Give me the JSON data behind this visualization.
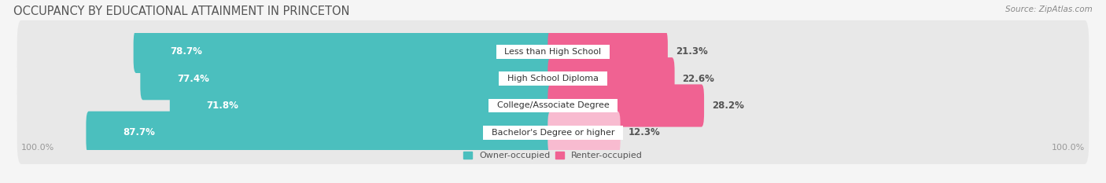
{
  "title": "OCCUPANCY BY EDUCATIONAL ATTAINMENT IN PRINCETON",
  "source": "Source: ZipAtlas.com",
  "categories": [
    "Less than High School",
    "High School Diploma",
    "College/Associate Degree",
    "Bachelor's Degree or higher"
  ],
  "owner_values": [
    78.7,
    77.4,
    71.8,
    87.7
  ],
  "renter_values": [
    21.3,
    22.6,
    28.2,
    12.3
  ],
  "owner_color": "#4BBFBE",
  "renter_colors": [
    "#F06292",
    "#F06292",
    "#F06292",
    "#F8BBD0"
  ],
  "background_color": "#f5f5f5",
  "row_bg_color": "#e8e8e8",
  "bar_height": 0.58,
  "x_left_label": "100.0%",
  "x_right_label": "100.0%",
  "legend_owner": "Owner-occupied",
  "legend_renter": "Renter-occupied",
  "title_fontsize": 10.5,
  "source_fontsize": 7.5,
  "bar_label_fontsize": 8.5,
  "category_fontsize": 8.0,
  "axis_fontsize": 8.0
}
